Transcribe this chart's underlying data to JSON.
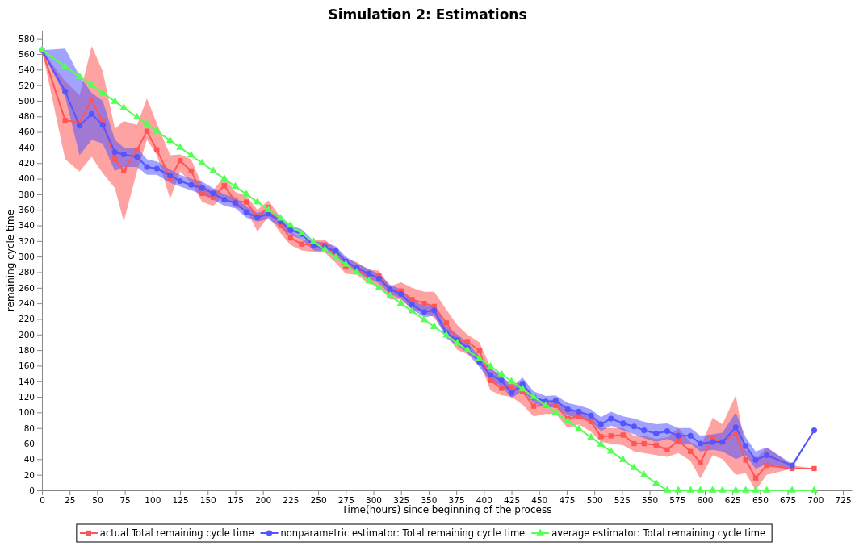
{
  "chart_data": {
    "type": "line",
    "title": "Simulation 2: Estimations",
    "xlabel": "Time(hours) since beginning of the process",
    "ylabel": "remaining cycle time",
    "x": [
      0,
      21,
      34,
      45,
      55,
      66,
      74,
      86,
      95,
      104,
      116,
      125,
      135,
      145,
      155,
      165,
      175,
      185,
      195,
      205,
      216,
      225,
      235,
      246,
      256,
      266,
      275,
      285,
      296,
      305,
      315,
      325,
      335,
      346,
      355,
      366,
      376,
      385,
      396,
      406,
      416,
      425,
      435,
      445,
      456,
      465,
      476,
      486,
      497,
      506,
      515,
      526,
      536,
      545,
      556,
      566,
      576,
      587,
      596,
      607,
      616,
      628,
      637,
      646,
      656,
      679,
      699
    ],
    "series": [
      {
        "name": "actual Total remaining cycle time",
        "color": "#ff5555",
        "marker": "square",
        "values": [
          565,
          475,
          472,
          501,
          473,
          425,
          410,
          437,
          461,
          437,
          401,
          423,
          410,
          381,
          376,
          391,
          371,
          370,
          351,
          363,
          340,
          324,
          316,
          315,
          315,
          302,
          287,
          285,
          273,
          275,
          257,
          256,
          245,
          240,
          236,
          215,
          193,
          191,
          179,
          141,
          131,
          133,
          127,
          108,
          109,
          109,
          92,
          95,
          88,
          69,
          70,
          71,
          60,
          60,
          58,
          52,
          64,
          50,
          36,
          66,
          62,
          73,
          39,
          16,
          32,
          28,
          28
        ],
        "lower": [
          565,
          425,
          409,
          428,
          407,
          388,
          345,
          409,
          450,
          430,
          374,
          409,
          395,
          370,
          365,
          378,
          363,
          360,
          332,
          352,
          330,
          315,
          308,
          306,
          305,
          292,
          278,
          277,
          265,
          262,
          245,
          245,
          232,
          228,
          222,
          200,
          180,
          175,
          165,
          128,
          122,
          120,
          110,
          95,
          98,
          98,
          80,
          85,
          75,
          62,
          60,
          58,
          50,
          48,
          45,
          43,
          48,
          38,
          15,
          45,
          40,
          20,
          22,
          0,
          20,
          28,
          28
        ],
        "upper": [
          565,
          525,
          507,
          570,
          538,
          464,
          474,
          469,
          503,
          471,
          430,
          431,
          425,
          392,
          385,
          403,
          383,
          378,
          360,
          372,
          350,
          333,
          322,
          322,
          322,
          310,
          297,
          293,
          283,
          282,
          262,
          267,
          260,
          255,
          255,
          232,
          212,
          200,
          190,
          158,
          145,
          138,
          138,
          120,
          115,
          115,
          105,
          102,
          96,
          80,
          80,
          80,
          70,
          70,
          66,
          68,
          80,
          62,
          55,
          93,
          85,
          122,
          52,
          40,
          55,
          32,
          28
        ]
      },
      {
        "name": "nonparametric estimator: Total remaining cycle time",
        "color": "#5555ff",
        "marker": "circle",
        "values": [
          565,
          512,
          468,
          483,
          469,
          434,
          431,
          428,
          415,
          413,
          404,
          397,
          392,
          388,
          381,
          373,
          369,
          357,
          350,
          355,
          345,
          334,
          329,
          314,
          312,
          307,
          294,
          285,
          278,
          272,
          258,
          252,
          238,
          229,
          231,
          202,
          193,
          183,
          165,
          148,
          141,
          125,
          136,
          120,
          114,
          115,
          104,
          101,
          96,
          85,
          92,
          86,
          82,
          77,
          73,
          76,
          70,
          70,
          60,
          62,
          62,
          81,
          57,
          39,
          45,
          32,
          77
        ],
        "lower": [
          565,
          505,
          430,
          450,
          445,
          410,
          415,
          415,
          405,
          405,
          395,
          390,
          385,
          380,
          373,
          365,
          362,
          350,
          345,
          348,
          338,
          328,
          322,
          308,
          306,
          300,
          288,
          279,
          272,
          266,
          252,
          246,
          232,
          222,
          224,
          195,
          186,
          176,
          158,
          140,
          134,
          118,
          128,
          112,
          106,
          107,
          96,
          93,
          88,
          76,
          83,
          77,
          72,
          67,
          62,
          66,
          60,
          60,
          50,
          52,
          50,
          40,
          45,
          28,
          34,
          28,
          77
        ],
        "upper": [
          565,
          567,
          532,
          510,
          500,
          450,
          440,
          440,
          425,
          422,
          412,
          405,
          400,
          396,
          388,
          380,
          376,
          364,
          356,
          360,
          352,
          340,
          335,
          320,
          318,
          313,
          300,
          291,
          284,
          278,
          264,
          258,
          245,
          236,
          238,
          210,
          200,
          190,
          172,
          156,
          148,
          132,
          145,
          127,
          121,
          122,
          112,
          109,
          104,
          94,
          101,
          95,
          92,
          88,
          85,
          86,
          80,
          80,
          70,
          72,
          74,
          100,
          68,
          50,
          55,
          34,
          77
        ]
      },
      {
        "name": "average estimator: Total remaining cycle time",
        "color": "#55ff55",
        "marker": "triangle",
        "values": [
          565,
          544,
          531,
          520,
          510,
          499,
          491,
          479,
          470,
          461,
          449,
          440,
          430,
          420,
          410,
          400,
          390,
          380,
          370,
          360,
          349,
          340,
          330,
          319,
          309,
          299,
          290,
          280,
          269,
          260,
          250,
          240,
          230,
          219,
          210,
          199,
          189,
          180,
          169,
          159,
          149,
          140,
          130,
          120,
          109,
          100,
          89,
          79,
          68,
          59,
          50,
          39,
          29,
          20,
          9,
          0,
          0,
          0,
          0,
          0,
          0,
          0,
          0,
          0,
          0,
          0,
          0
        ]
      }
    ],
    "xlim": [
      0,
      733
    ],
    "xticks": [
      0,
      25,
      50,
      75,
      100,
      125,
      150,
      175,
      200,
      225,
      250,
      275,
      300,
      325,
      350,
      375,
      400,
      425,
      450,
      475,
      500,
      525,
      550,
      575,
      600,
      625,
      650,
      675,
      700,
      725
    ],
    "ylim": [
      0,
      590
    ],
    "yticks": [
      0,
      20,
      40,
      60,
      80,
      100,
      120,
      140,
      160,
      180,
      200,
      220,
      240,
      260,
      280,
      300,
      320,
      340,
      360,
      380,
      400,
      420,
      440,
      460,
      480,
      500,
      520,
      540,
      560,
      580
    ],
    "grid": false,
    "legend": "bottom"
  }
}
